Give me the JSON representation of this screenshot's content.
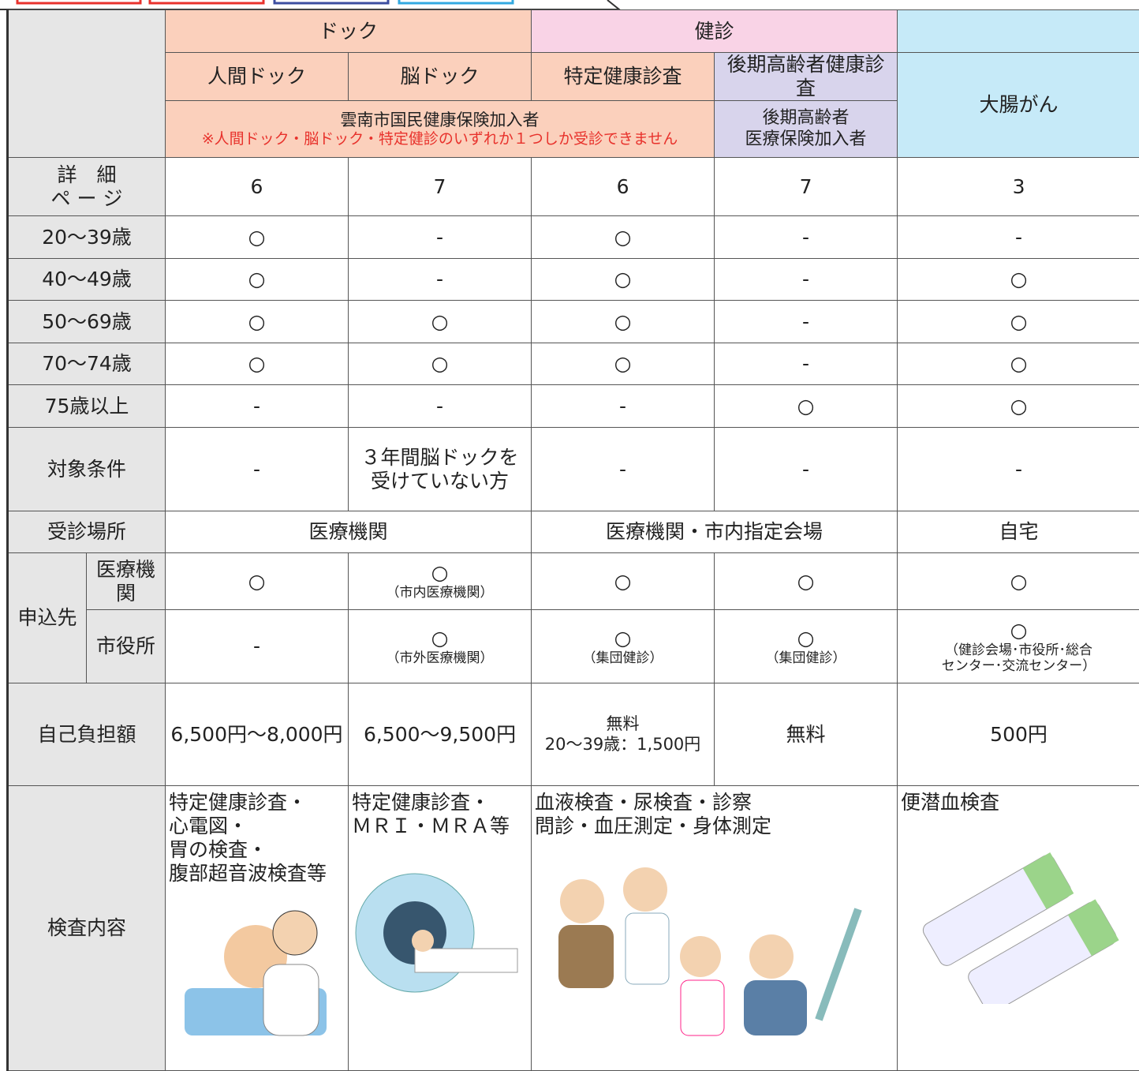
{
  "header": {
    "groups": [
      "ドック",
      "健診"
    ],
    "exams": [
      "人間ドック",
      "脳ドック",
      "特定健康診査",
      "後期高齢者健康診査",
      "大腸がん"
    ],
    "eligibility": {
      "main": "雲南市国民健康保険加入者",
      "note": "※人間ドック・脳ドック・特定健診のいずれか１つしか受診できません",
      "elderly": "後期高齢者\n医療保険加入者"
    }
  },
  "rows": [
    {
      "label": "詳　細\nペ ー ジ",
      "cells": [
        "6",
        "7",
        "6",
        "7",
        "3"
      ]
    },
    {
      "label": "20～39歳",
      "cells": [
        "○",
        "-",
        "○",
        "-",
        "-"
      ]
    },
    {
      "label": "40～49歳",
      "cells": [
        "○",
        "-",
        "○",
        "-",
        "○"
      ]
    },
    {
      "label": "50～69歳",
      "cells": [
        "○",
        "○",
        "○",
        "-",
        "○"
      ]
    },
    {
      "label": "70～74歳",
      "cells": [
        "○",
        "○",
        "○",
        "-",
        "○"
      ]
    },
    {
      "label": "75歳以上",
      "cells": [
        "-",
        "-",
        "-",
        "○",
        "○"
      ]
    },
    {
      "label": "対象条件",
      "cells": [
        "-",
        "３年間脳ドックを\n受けていない方",
        "-",
        "-",
        "-"
      ]
    },
    {
      "label": "受診場所",
      "cells": [
        "医療機関",
        "医療機関・市内指定会場",
        "自宅"
      ]
    }
  ],
  "application": {
    "label": "申込先",
    "rows": [
      {
        "label": "医療機関",
        "cells": [
          "○",
          {
            "main": "○",
            "note": "（市内医療機関）"
          },
          "○",
          "○",
          "○"
        ]
      },
      {
        "label": "市役所",
        "cells": [
          "-",
          {
            "main": "○",
            "note": "（市外医療機関）"
          },
          {
            "main": "○",
            "note": "（集団健診）"
          },
          {
            "main": "○",
            "note": "（集団健診）"
          },
          {
            "main": "○",
            "note": "（健診会場･市役所･総合\nセンター･交流センター）"
          }
        ]
      }
    ]
  },
  "cost": {
    "label": "自己負担額",
    "cells": [
      "6,500円～8,000円",
      "6,500～9,500円",
      {
        "main": "無料",
        "note": "20～39歳：1,500円"
      },
      "無料",
      "500円"
    ]
  },
  "content": {
    "label": "検査内容",
    "cells": [
      "特定健康診査・\n心電図・\n胃の検査・\n腹部超音波検査等",
      "特定健康診査・\nＭＲＩ・ＭＲＡ等",
      "血液検査・尿検査・診察\n問診・血圧測定・身体測定",
      "便潜血検査"
    ]
  }
}
